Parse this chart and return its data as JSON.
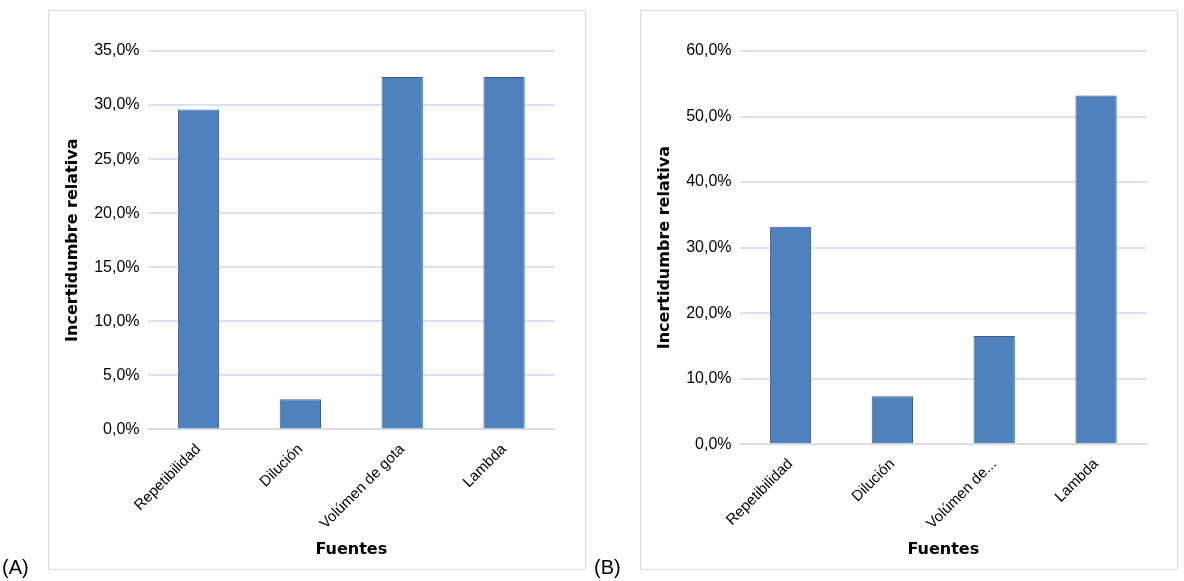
{
  "chart_data": [
    {
      "type": "bar",
      "xlabel": "Fuentes",
      "ylabel": "Incertidumbre relativa",
      "categories": [
        "Repetibilidad",
        "Dilución",
        "Volúmen de gota",
        "Lambda"
      ],
      "values": [
        29.6,
        2.8,
        32.6,
        32.6
      ],
      "color": "#4f81bd",
      "ylim": [
        0,
        35
      ],
      "yticks": [
        {
          "value": 0,
          "label": "0,0%"
        },
        {
          "value": 5,
          "label": "5,0%"
        },
        {
          "value": 10,
          "label": "10,0%"
        },
        {
          "value": 15,
          "label": "15,0%"
        },
        {
          "value": 20,
          "label": "20,0%"
        },
        {
          "value": 25,
          "label": "25,0%"
        },
        {
          "value": 30,
          "label": "30,0%"
        },
        {
          "value": 35,
          "label": "35,0%"
        }
      ],
      "grid": "y",
      "legend": false,
      "annotations": [
        "(A)"
      ]
    },
    {
      "type": "bar",
      "xlabel": "Fuentes",
      "ylabel": "Incertidumbre relativa",
      "categories": [
        "Repetibilidad",
        "Dilución",
        "Volúmen de...",
        "Lambda"
      ],
      "values": [
        33.2,
        7.3,
        16.5,
        53.2
      ],
      "color": "#4f81bd",
      "ylim": [
        0,
        60
      ],
      "yticks": [
        {
          "value": 0,
          "label": "0,0%"
        },
        {
          "value": 10,
          "label": "10,0%"
        },
        {
          "value": 20,
          "label": "20,0%"
        },
        {
          "value": 30,
          "label": "30,0%"
        },
        {
          "value": 40,
          "label": "40,0%"
        },
        {
          "value": 50,
          "label": "50,0%"
        },
        {
          "value": 60,
          "label": "60,0%"
        }
      ],
      "grid": "y",
      "legend": false,
      "annotations": [
        "(B)"
      ]
    }
  ]
}
